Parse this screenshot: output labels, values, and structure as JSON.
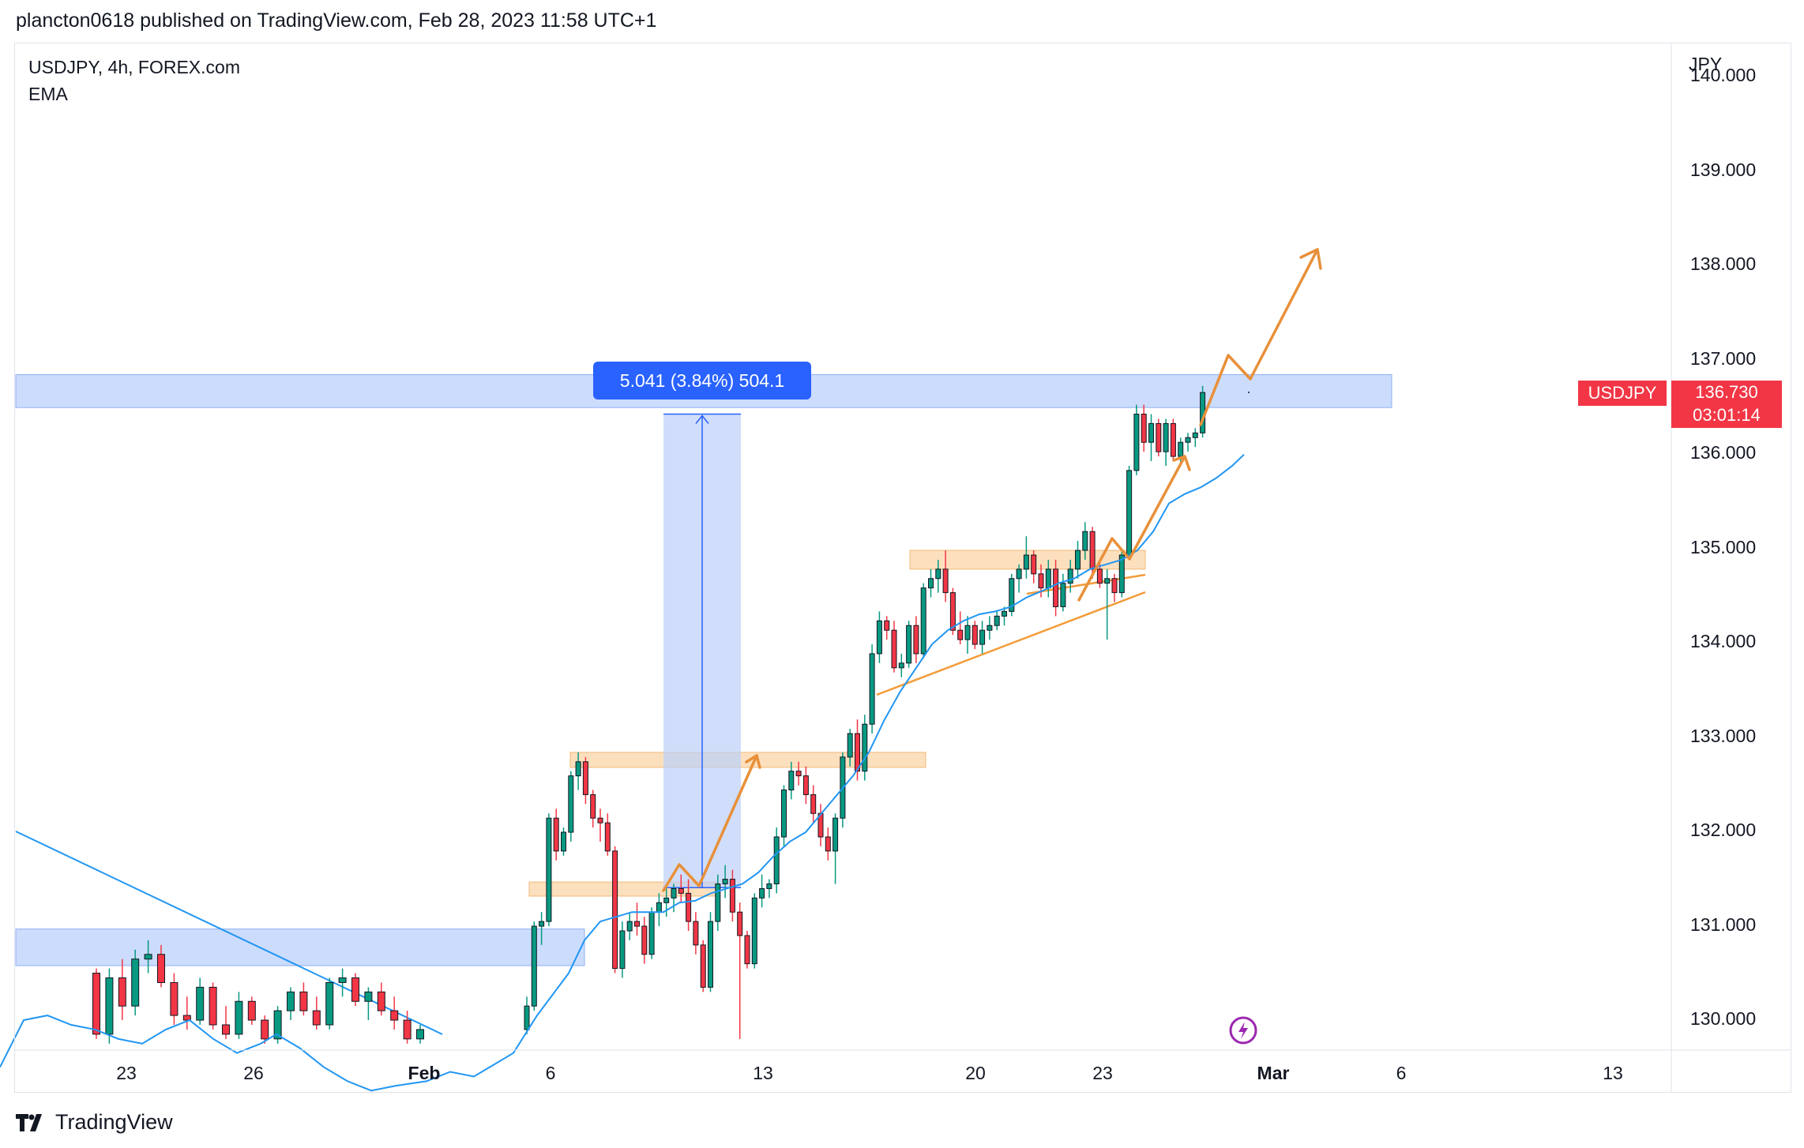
{
  "header": {
    "published_text": "plancton0618 published on TradingView.com, Feb 28, 2023 11:58 UTC+1"
  },
  "legend": {
    "symbol_line": "USDJPY, 4h, FOREX.com",
    "indicator": "EMA"
  },
  "axis": {
    "currency": "JPY",
    "price_ticks": [
      "140.000",
      "139.000",
      "138.000",
      "137.000",
      "136.000",
      "135.000",
      "134.000",
      "133.000",
      "132.000",
      "131.000",
      "130.000"
    ],
    "date_ticks": [
      "23",
      "26",
      "Feb",
      "6",
      "13",
      "20",
      "23",
      "Mar",
      "6",
      "13"
    ]
  },
  "last_price": {
    "symbol": "USDJPY",
    "price": "136.730",
    "countdown": "03:01:14"
  },
  "measure": {
    "label": "5.041 (3.84%) 504.1"
  },
  "footer": {
    "brand": "TradingView"
  },
  "colors": {
    "up": "#089981",
    "down": "#f23645",
    "ema": "#2196f3",
    "zone_blue": "#bbd0fb",
    "zone_orange": "#fbd5a8",
    "projection": "#e8903a",
    "trendline": "#2196f3"
  },
  "chart_data": {
    "type": "candlestick",
    "symbol": "USDJPY",
    "timeframe": "4h",
    "ylim": [
      129.75,
      140.1
    ],
    "series": [
      {
        "name": "USDJPY",
        "ohlc": [
          [
            130.55,
            130.6,
            129.85,
            129.9
          ],
          [
            129.9,
            130.6,
            129.8,
            130.5
          ],
          [
            130.5,
            130.7,
            130.05,
            130.2
          ],
          [
            130.2,
            130.8,
            130.1,
            130.7
          ],
          [
            130.7,
            130.9,
            130.55,
            130.75
          ],
          [
            130.75,
            130.85,
            130.4,
            130.45
          ],
          [
            130.45,
            130.55,
            130.0,
            130.1
          ],
          [
            130.1,
            130.3,
            129.95,
            130.05
          ],
          [
            130.05,
            130.5,
            130.0,
            130.4
          ],
          [
            130.4,
            130.45,
            129.95,
            130.0
          ],
          [
            130.0,
            130.2,
            129.85,
            129.9
          ],
          [
            129.9,
            130.35,
            129.85,
            130.25
          ],
          [
            130.25,
            130.3,
            130.0,
            130.05
          ],
          [
            130.05,
            130.1,
            129.8,
            129.85
          ],
          [
            129.85,
            130.2,
            129.8,
            130.15
          ],
          [
            130.15,
            130.4,
            130.05,
            130.35
          ],
          [
            130.35,
            130.45,
            130.1,
            130.15
          ],
          [
            130.15,
            130.3,
            129.95,
            130.0
          ],
          [
            130.0,
            130.5,
            129.95,
            130.45
          ],
          [
            130.45,
            130.6,
            130.3,
            130.5
          ],
          [
            130.5,
            130.55,
            130.2,
            130.25
          ],
          [
            130.25,
            130.4,
            130.05,
            130.35
          ],
          [
            130.35,
            130.45,
            130.1,
            130.15
          ],
          [
            130.15,
            130.3,
            129.95,
            130.05
          ],
          [
            130.05,
            130.15,
            129.8,
            129.85
          ],
          [
            129.85,
            130.0,
            129.8,
            129.95
          ],
          [
            129.95,
            130.3,
            129.9,
            130.2
          ],
          [
            130.2,
            131.1,
            130.15,
            131.05
          ],
          [
            131.05,
            131.2,
            130.85,
            131.1
          ],
          [
            131.1,
            132.25,
            131.05,
            132.2
          ],
          [
            132.2,
            132.3,
            131.75,
            131.85
          ],
          [
            131.85,
            132.1,
            131.8,
            132.05
          ],
          [
            132.05,
            132.7,
            131.95,
            132.65
          ],
          [
            132.65,
            132.9,
            132.5,
            132.8
          ],
          [
            132.8,
            132.85,
            132.35,
            132.45
          ],
          [
            132.45,
            132.5,
            132.1,
            132.2
          ],
          [
            132.2,
            132.3,
            131.95,
            132.15
          ],
          [
            132.15,
            132.25,
            131.8,
            131.85
          ],
          [
            131.85,
            131.9,
            130.55,
            130.6
          ],
          [
            130.6,
            131.1,
            130.5,
            131.0
          ],
          [
            131.0,
            131.2,
            130.9,
            131.1
          ],
          [
            131.1,
            131.3,
            130.95,
            131.05
          ],
          [
            131.05,
            131.15,
            130.65,
            130.75
          ],
          [
            130.75,
            131.25,
            130.7,
            131.2
          ],
          [
            131.2,
            131.4,
            131.05,
            131.3
          ],
          [
            131.3,
            131.45,
            131.15,
            131.35
          ],
          [
            131.35,
            131.5,
            131.2,
            131.45
          ],
          [
            131.45,
            131.6,
            131.3,
            131.4
          ],
          [
            131.4,
            131.55,
            131.0,
            131.1
          ],
          [
            131.1,
            131.2,
            130.75,
            130.85
          ],
          [
            130.85,
            130.9,
            130.35,
            130.4
          ],
          [
            130.4,
            131.2,
            130.35,
            131.1
          ],
          [
            131.1,
            131.6,
            131.0,
            131.5
          ],
          [
            131.5,
            131.7,
            131.35,
            131.55
          ],
          [
            131.55,
            131.65,
            131.1,
            131.2
          ],
          [
            131.2,
            131.3,
            129.85,
            130.95
          ],
          [
            130.95,
            131.0,
            130.6,
            130.65
          ],
          [
            130.65,
            131.4,
            130.6,
            131.35
          ],
          [
            131.35,
            131.6,
            131.25,
            131.45
          ],
          [
            131.45,
            131.55,
            131.35,
            131.5
          ],
          [
            131.5,
            132.1,
            131.4,
            132.0
          ],
          [
            132.0,
            132.55,
            131.9,
            132.5
          ],
          [
            132.5,
            132.8,
            132.4,
            132.7
          ],
          [
            132.7,
            132.8,
            132.55,
            132.65
          ],
          [
            132.65,
            132.75,
            132.35,
            132.45
          ],
          [
            132.45,
            132.55,
            132.15,
            132.25
          ],
          [
            132.25,
            132.35,
            131.9,
            132.0
          ],
          [
            132.0,
            132.1,
            131.75,
            131.85
          ],
          [
            131.85,
            132.25,
            131.5,
            132.2
          ],
          [
            132.2,
            132.9,
            132.1,
            132.85
          ],
          [
            132.85,
            133.15,
            132.75,
            133.1
          ],
          [
            133.1,
            133.25,
            132.6,
            132.7
          ],
          [
            132.7,
            133.3,
            132.6,
            133.2
          ],
          [
            133.2,
            134.05,
            133.1,
            133.95
          ],
          [
            133.95,
            134.4,
            133.85,
            134.3
          ],
          [
            134.3,
            134.35,
            134.1,
            134.2
          ],
          [
            134.2,
            134.3,
            133.75,
            133.8
          ],
          [
            133.8,
            133.95,
            133.7,
            133.85
          ],
          [
            133.85,
            134.3,
            133.8,
            134.25
          ],
          [
            134.25,
            134.35,
            133.85,
            133.95
          ],
          [
            133.95,
            134.7,
            133.9,
            134.65
          ],
          [
            134.65,
            134.85,
            134.55,
            134.75
          ],
          [
            134.75,
            134.95,
            134.6,
            134.85
          ],
          [
            134.85,
            135.05,
            134.5,
            134.6
          ],
          [
            134.6,
            134.65,
            134.15,
            134.2
          ],
          [
            134.2,
            134.4,
            134.05,
            134.1
          ],
          [
            134.1,
            134.35,
            133.95,
            134.25
          ],
          [
            134.25,
            134.3,
            134.0,
            134.05
          ],
          [
            134.05,
            134.3,
            133.95,
            134.2
          ],
          [
            134.2,
            134.35,
            134.1,
            134.25
          ],
          [
            134.25,
            134.4,
            134.2,
            134.35
          ],
          [
            134.35,
            134.45,
            134.25,
            134.4
          ],
          [
            134.4,
            134.8,
            134.35,
            134.75
          ],
          [
            134.75,
            134.9,
            134.6,
            134.85
          ],
          [
            134.85,
            135.2,
            134.75,
            135.0
          ],
          [
            135.0,
            135.05,
            134.7,
            134.8
          ],
          [
            134.8,
            134.9,
            134.55,
            134.65
          ],
          [
            134.65,
            134.95,
            134.55,
            134.85
          ],
          [
            134.85,
            134.95,
            134.35,
            134.45
          ],
          [
            134.45,
            134.8,
            134.4,
            134.7
          ],
          [
            134.7,
            134.95,
            134.6,
            134.85
          ],
          [
            134.85,
            135.15,
            134.75,
            135.05
          ],
          [
            135.05,
            135.35,
            134.95,
            135.25
          ],
          [
            135.25,
            135.3,
            134.75,
            134.85
          ],
          [
            134.85,
            134.95,
            134.65,
            134.7
          ],
          [
            134.7,
            134.85,
            134.1,
            134.75
          ],
          [
            134.75,
            134.8,
            134.5,
            134.6
          ],
          [
            134.6,
            135.05,
            134.55,
            135.0
          ],
          [
            135.0,
            135.95,
            134.95,
            135.9
          ],
          [
            135.9,
            136.6,
            135.85,
            136.5
          ],
          [
            136.5,
            136.6,
            136.1,
            136.2
          ],
          [
            136.2,
            136.5,
            136.0,
            136.4
          ],
          [
            136.4,
            136.45,
            136.05,
            136.1
          ],
          [
            136.1,
            136.45,
            135.95,
            136.4
          ],
          [
            136.4,
            136.45,
            136.0,
            136.05
          ],
          [
            136.05,
            136.25,
            135.95,
            136.2
          ],
          [
            136.2,
            136.3,
            136.1,
            136.25
          ],
          [
            136.25,
            136.35,
            136.15,
            136.3
          ],
          [
            136.3,
            136.8,
            136.25,
            136.73
          ]
        ]
      },
      {
        "name": "EMA",
        "values": [
          [
            0,
            129.55
          ],
          [
            30,
            130.05
          ],
          [
            60,
            130.1
          ],
          [
            90,
            130.0
          ],
          [
            120,
            129.95
          ],
          [
            150,
            129.85
          ],
          [
            180,
            129.8
          ],
          [
            210,
            129.95
          ],
          [
            240,
            130.05
          ],
          [
            270,
            129.85
          ],
          [
            300,
            129.7
          ],
          [
            330,
            129.8
          ],
          [
            350,
            129.9
          ],
          [
            380,
            129.75
          ],
          [
            410,
            129.55
          ],
          [
            440,
            129.4
          ],
          [
            470,
            129.3
          ],
          [
            500,
            129.35
          ],
          [
            540,
            129.4
          ],
          [
            570,
            129.5
          ],
          [
            600,
            129.45
          ],
          [
            650,
            129.7
          ],
          [
            680,
            130.1
          ],
          [
            720,
            130.55
          ],
          [
            740,
            130.9
          ],
          [
            760,
            131.1
          ],
          [
            780,
            131.15
          ],
          [
            800,
            131.2
          ],
          [
            820,
            131.2
          ],
          [
            840,
            131.2
          ],
          [
            860,
            131.3
          ],
          [
            880,
            131.32
          ],
          [
            900,
            131.4
          ],
          [
            920,
            131.45
          ],
          [
            940,
            131.5
          ],
          [
            960,
            131.62
          ],
          [
            980,
            131.8
          ],
          [
            1000,
            131.95
          ],
          [
            1020,
            132.05
          ],
          [
            1040,
            132.25
          ],
          [
            1060,
            132.45
          ],
          [
            1080,
            132.65
          ],
          [
            1100,
            132.9
          ],
          [
            1120,
            133.25
          ],
          [
            1140,
            133.55
          ],
          [
            1160,
            133.8
          ],
          [
            1180,
            134.05
          ],
          [
            1200,
            134.2
          ],
          [
            1220,
            134.3
          ],
          [
            1240,
            134.37
          ],
          [
            1260,
            134.4
          ],
          [
            1280,
            134.45
          ],
          [
            1300,
            134.55
          ],
          [
            1320,
            134.62
          ],
          [
            1340,
            134.7
          ],
          [
            1360,
            134.75
          ],
          [
            1380,
            134.85
          ],
          [
            1400,
            134.9
          ],
          [
            1420,
            134.95
          ],
          [
            1440,
            135.05
          ],
          [
            1460,
            135.25
          ],
          [
            1480,
            135.55
          ],
          [
            1500,
            135.65
          ],
          [
            1520,
            135.72
          ],
          [
            1540,
            135.82
          ],
          [
            1560,
            135.95
          ],
          [
            1575,
            136.07
          ]
        ]
      }
    ],
    "zones": [
      {
        "color": "blue",
        "y": [
          136.57,
          136.92
        ]
      },
      {
        "color": "blue",
        "y": [
          130.63,
          131.02
        ]
      },
      {
        "color": "orange",
        "y": [
          132.74,
          132.9
        ]
      },
      {
        "color": "orange",
        "y": [
          134.85,
          135.05
        ]
      },
      {
        "color": "orange",
        "y": [
          131.37,
          131.52
        ]
      }
    ],
    "measure": {
      "from": 131.46,
      "to": 136.5,
      "label": "5.041 (3.84%) 504.1"
    },
    "last_price": 136.73
  }
}
